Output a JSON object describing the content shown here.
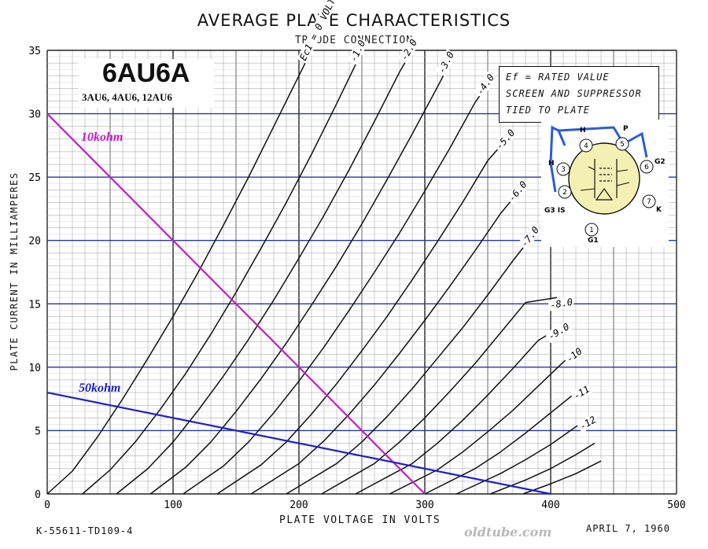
{
  "chart_data": {
    "type": "line",
    "title": "AVERAGE PLATE CHARACTERISTICS",
    "subtitle": "TRIODE CONNECTION",
    "xlabel": "PLATE VOLTAGE IN VOLTS",
    "ylabel": "PLATE CURRENT IN MILLIAMPERES",
    "xlim": [
      0,
      500
    ],
    "ylim": [
      0,
      35
    ],
    "x_ticks": [
      "0",
      "100",
      "200",
      "300",
      "400",
      "500"
    ],
    "y_ticks": [
      "0",
      "5",
      "10",
      "15",
      "20",
      "25",
      "30",
      "35"
    ],
    "grid": true,
    "series": [
      {
        "name": "Ec1 = 0 VOLTS",
        "values": [
          [
            0,
            0
          ],
          [
            20,
            1.8
          ],
          [
            40,
            4.5
          ],
          [
            60,
            7.5
          ],
          [
            80,
            10.7
          ],
          [
            100,
            14
          ],
          [
            120,
            17.5
          ],
          [
            140,
            21.2
          ],
          [
            160,
            25
          ],
          [
            180,
            29
          ],
          [
            200,
            33
          ],
          [
            210,
            35
          ]
        ]
      },
      {
        "name": "-1.0",
        "values": [
          [
            28,
            0
          ],
          [
            50,
            1.9
          ],
          [
            70,
            4.1
          ],
          [
            90,
            6.7
          ],
          [
            110,
            9.5
          ],
          [
            130,
            12.6
          ],
          [
            150,
            15.9
          ],
          [
            170,
            19.4
          ],
          [
            190,
            23
          ],
          [
            210,
            26.8
          ],
          [
            230,
            30.8
          ],
          [
            250,
            34.9
          ]
        ]
      },
      {
        "name": "-2.0",
        "values": [
          [
            55,
            0
          ],
          [
            80,
            2
          ],
          [
            100,
            4.1
          ],
          [
            120,
            6.6
          ],
          [
            140,
            9.3
          ],
          [
            160,
            12.2
          ],
          [
            180,
            15.3
          ],
          [
            200,
            18.6
          ],
          [
            220,
            22
          ],
          [
            240,
            25.6
          ],
          [
            260,
            29.4
          ],
          [
            280,
            33.3
          ],
          [
            290,
            35
          ]
        ]
      },
      {
        "name": "-3.0",
        "values": [
          [
            82,
            0
          ],
          [
            110,
            2.1
          ],
          [
            130,
            4.1
          ],
          [
            150,
            6.5
          ],
          [
            170,
            9.1
          ],
          [
            190,
            11.9
          ],
          [
            210,
            14.9
          ],
          [
            230,
            18
          ],
          [
            250,
            21.3
          ],
          [
            270,
            24.8
          ],
          [
            290,
            28.4
          ],
          [
            310,
            32.1
          ],
          [
            320,
            34
          ]
        ]
      },
      {
        "name": "-4.0",
        "values": [
          [
            108,
            0
          ],
          [
            140,
            2.2
          ],
          [
            160,
            4.1
          ],
          [
            180,
            6.4
          ],
          [
            200,
            8.9
          ],
          [
            220,
            11.6
          ],
          [
            240,
            14.5
          ],
          [
            260,
            17.5
          ],
          [
            280,
            20.6
          ],
          [
            300,
            23.9
          ],
          [
            320,
            27.3
          ],
          [
            340,
            30.9
          ],
          [
            350,
            32.3
          ]
        ]
      },
      {
        "name": "-5.0",
        "values": [
          [
            135,
            0
          ],
          [
            170,
            2.3
          ],
          [
            190,
            4.1
          ],
          [
            210,
            6.3
          ],
          [
            230,
            8.7
          ],
          [
            250,
            11.3
          ],
          [
            270,
            14
          ],
          [
            290,
            16.9
          ],
          [
            310,
            19.9
          ],
          [
            330,
            23
          ],
          [
            350,
            26.3
          ],
          [
            365,
            28
          ]
        ]
      },
      {
        "name": "-6.0",
        "values": [
          [
            162,
            0
          ],
          [
            200,
            2.4
          ],
          [
            220,
            4.2
          ],
          [
            240,
            6.3
          ],
          [
            260,
            8.6
          ],
          [
            280,
            11.1
          ],
          [
            300,
            13.7
          ],
          [
            320,
            16.4
          ],
          [
            340,
            19.2
          ],
          [
            360,
            22.1
          ],
          [
            375,
            23.9
          ]
        ]
      },
      {
        "name": "-7.0",
        "values": [
          [
            190,
            0
          ],
          [
            230,
            2.4
          ],
          [
            250,
            4.1
          ],
          [
            270,
            6.1
          ],
          [
            290,
            8.3
          ],
          [
            310,
            10.7
          ],
          [
            330,
            13.1
          ],
          [
            350,
            15.7
          ],
          [
            370,
            18.4
          ],
          [
            385,
            20.3
          ]
        ]
      },
      {
        "name": "-8.0",
        "values": [
          [
            218,
            0
          ],
          [
            260,
            2.4
          ],
          [
            280,
            4.1
          ],
          [
            300,
            6
          ],
          [
            320,
            8.1
          ],
          [
            340,
            10.3
          ],
          [
            360,
            12.7
          ],
          [
            380,
            15.1
          ],
          [
            405,
            15.5
          ]
        ]
      },
      {
        "name": "-9.0",
        "values": [
          [
            245,
            0
          ],
          [
            290,
            2.4
          ],
          [
            310,
            4
          ],
          [
            330,
            5.8
          ],
          [
            350,
            7.8
          ],
          [
            370,
            9.9
          ],
          [
            390,
            12.1
          ],
          [
            405,
            13
          ]
        ]
      },
      {
        "name": "-10",
        "values": [
          [
            272,
            0
          ],
          [
            310,
            1.9
          ],
          [
            330,
            3.3
          ],
          [
            350,
            4.9
          ],
          [
            370,
            6.6
          ],
          [
            390,
            8.5
          ],
          [
            410,
            10.4
          ],
          [
            420,
            11.2
          ]
        ]
      },
      {
        "name": "-11",
        "values": [
          [
            300,
            0
          ],
          [
            340,
            2.0
          ],
          [
            360,
            3.3
          ],
          [
            380,
            4.8
          ],
          [
            400,
            6.4
          ],
          [
            420,
            8
          ],
          [
            425,
            8.3
          ]
        ]
      },
      {
        "name": "-12",
        "values": [
          [
            325,
            0
          ],
          [
            360,
            1.6
          ],
          [
            380,
            2.7
          ],
          [
            400,
            3.9
          ],
          [
            420,
            5.3
          ],
          [
            430,
            5.9
          ]
        ]
      },
      {
        "name": "",
        "values": [
          [
            352,
            0
          ],
          [
            380,
            1.1
          ],
          [
            400,
            2
          ],
          [
            420,
            3.1
          ],
          [
            435,
            4
          ]
        ]
      },
      {
        "name": "",
        "values": [
          [
            378,
            0
          ],
          [
            400,
            0.8
          ],
          [
            420,
            1.6
          ],
          [
            440,
            2.6
          ]
        ]
      }
    ],
    "load_lines": [
      {
        "name": "10kohm",
        "color": "#c020c0",
        "values": [
          [
            0,
            30
          ],
          [
            300,
            0
          ]
        ]
      },
      {
        "name": "50kohm",
        "color": "#2020c8",
        "values": [
          [
            0,
            8
          ],
          [
            400,
            0
          ]
        ]
      }
    ]
  },
  "tube": {
    "name": "6AU6A",
    "variants": "3AU6, 4AU6, 12AU6"
  },
  "note": {
    "line1": "Ef = RATED VALUE",
    "line2": "SCREEN AND SUPPRESSOR",
    "line3": "TIED TO PLATE"
  },
  "pins": [
    {
      "num": "1",
      "label": "G1"
    },
    {
      "num": "2",
      "label": "G3 IS"
    },
    {
      "num": "3",
      "label": "H"
    },
    {
      "num": "4",
      "label": "H"
    },
    {
      "num": "5",
      "label": "P"
    },
    {
      "num": "6",
      "label": "G2"
    },
    {
      "num": "7",
      "label": "K"
    }
  ],
  "footer": {
    "code": "K-55611-TD109-4",
    "date": "APRIL 7, 1960",
    "watermark": "oldtube.com"
  }
}
